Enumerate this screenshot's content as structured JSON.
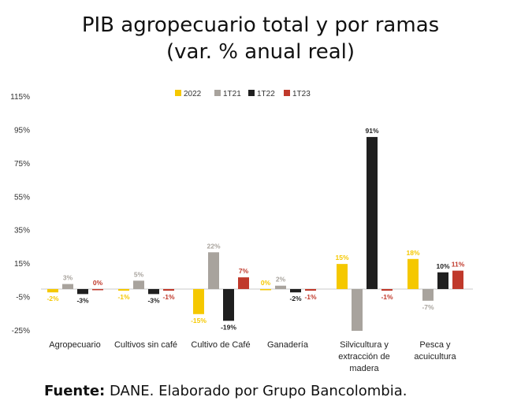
{
  "chart_data": {
    "type": "bar",
    "title": "PIB agropecuario total y por ramas",
    "subtitle": "(var. % anual real)",
    "categories": [
      [
        "Agropecuario"
      ],
      [
        "Cultivos sin café"
      ],
      [
        "Cultivo de Café"
      ],
      [
        "Ganadería"
      ],
      [
        "Silvicultura y",
        "extracción de",
        "madera"
      ],
      [
        "Pesca y",
        "acuicultura"
      ]
    ],
    "series": [
      {
        "name": "2022",
        "color": "#F5C800",
        "values": [
          -2,
          -1,
          -15,
          0,
          15,
          18
        ],
        "labels": [
          "-2%",
          "-1%",
          "-15%",
          "0%",
          "15%",
          "18%"
        ]
      },
      {
        "name": "1T21",
        "color": "#A8A39D",
        "values": [
          3,
          5,
          22,
          2,
          -25,
          -7
        ],
        "labels": [
          "3%",
          "5%",
          "22%",
          "2%",
          "",
          "-7%"
        ]
      },
      {
        "name": "1T22",
        "color": "#1F1F1F",
        "values": [
          -3,
          -3,
          -19,
          -2,
          91,
          10
        ],
        "labels": [
          "-3%",
          "-3%",
          "-19%",
          "-2%",
          "91%",
          "10%"
        ]
      },
      {
        "name": "1T23",
        "color": "#C0392B",
        "values": [
          0,
          -1,
          7,
          -1,
          -1,
          11
        ],
        "labels": [
          "0%",
          "-1%",
          "7%",
          "-1%",
          "-1%",
          "11%"
        ]
      }
    ],
    "label_colors": [
      "#F5C800",
      "#A8A39D",
      "#1F1F1F",
      "#C0392B"
    ],
    "yticks": [
      "115%",
      "95%",
      "75%",
      "55%",
      "35%",
      "15%",
      "-5%",
      "-25%"
    ],
    "ylim": [
      -25,
      115
    ],
    "legend_position": "top-center",
    "grid": false
  },
  "source": {
    "label": "Fuente:",
    "text": " DANE. Elaborado por Grupo Bancolombia."
  }
}
